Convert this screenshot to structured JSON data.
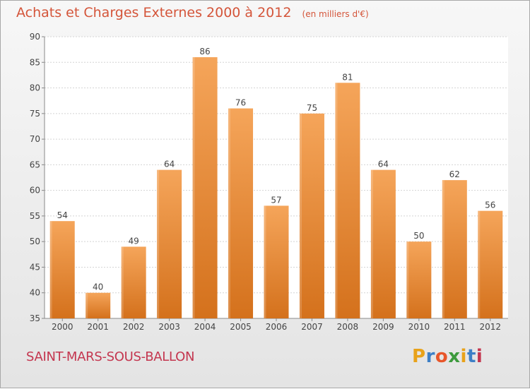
{
  "chart_data": {
    "type": "bar",
    "title": "Achats et Charges Externes 2000 à 2012",
    "subtitle": "(en milliers d'€)",
    "categories": [
      "2000",
      "2001",
      "2002",
      "2003",
      "2004",
      "2005",
      "2006",
      "2007",
      "2008",
      "2009",
      "2010",
      "2011",
      "2012"
    ],
    "values": [
      54,
      40,
      49,
      64,
      86,
      76,
      57,
      75,
      81,
      64,
      50,
      62,
      56
    ],
    "ylim": [
      35,
      90
    ],
    "yticks": [
      "35",
      "40",
      "45",
      "50",
      "55",
      "60",
      "65",
      "70",
      "75",
      "80",
      "85",
      "90"
    ],
    "grid": true,
    "xlabel": "",
    "ylabel": "",
    "bar_color_top": "#f5a55a",
    "bar_color_bottom": "#d4711c"
  },
  "footer": {
    "commune": "SAINT-MARS-SOUS-BALLON",
    "logo": "Proxiti",
    "logo_colors": [
      "#e8a21a",
      "#3d7fc6",
      "#e8562a",
      "#3d9a3d",
      "#e8a21a",
      "#3d7fc6",
      "#c4364f"
    ]
  }
}
